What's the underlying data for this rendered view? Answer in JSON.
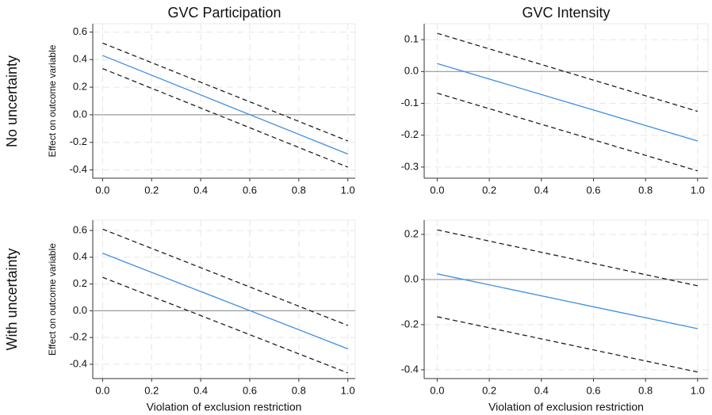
{
  "column_titles": [
    "GVC Participation",
    "GVC Intensity"
  ],
  "row_labels": [
    "No uncertainty",
    "With uncertainty"
  ],
  "chart_data": [
    {
      "type": "line",
      "x": [
        0,
        1
      ],
      "xlim": [
        -0.04,
        1.03
      ],
      "ylim": [
        -0.46,
        0.66
      ],
      "xticks": [
        {
          "value": 0,
          "label": "0.0"
        },
        0.2,
        0.4,
        0.6,
        0.8,
        {
          "value": 1,
          "label": "1.0"
        }
      ],
      "yticks": [
        -0.4,
        -0.2,
        {
          "value": 0,
          "label": "0.0"
        },
        0.2,
        0.4,
        0.6
      ],
      "y_label": "Effect on outcome variable",
      "grid": true,
      "reference_line": 0,
      "series": [
        {
          "color": "#1f1f1f",
          "dashed": true,
          "values": [
            0.52,
            -0.19
          ]
        },
        {
          "color": "#3d8fe0",
          "dashed": false,
          "values": [
            0.43,
            -0.285
          ]
        },
        {
          "color": "#1f1f1f",
          "dashed": true,
          "values": [
            0.335,
            -0.38
          ]
        }
      ]
    },
    {
      "type": "line",
      "x": [
        0,
        1
      ],
      "xlim": [
        -0.05,
        1.04
      ],
      "ylim": [
        -0.335,
        0.15
      ],
      "xticks": [
        {
          "value": 0,
          "label": "0.0"
        },
        0.2,
        0.4,
        0.6,
        0.8,
        {
          "value": 1,
          "label": "1.0"
        }
      ],
      "yticks": [
        -0.3,
        -0.2,
        -0.1,
        {
          "value": 0,
          "label": "0.0"
        },
        0.1
      ],
      "grid": true,
      "reference_line": 0,
      "series": [
        {
          "color": "#1f1f1f",
          "dashed": true,
          "values": [
            0.12,
            -0.125
          ]
        },
        {
          "color": "#3d8fe0",
          "dashed": false,
          "values": [
            0.025,
            -0.218
          ]
        },
        {
          "color": "#1f1f1f",
          "dashed": true,
          "values": [
            -0.068,
            -0.312
          ]
        }
      ]
    },
    {
      "type": "line",
      "x": [
        0,
        1
      ],
      "xlim": [
        -0.04,
        1.03
      ],
      "ylim": [
        -0.507,
        0.677
      ],
      "xticks": [
        {
          "value": 0,
          "label": "0.0"
        },
        0.2,
        0.4,
        0.6,
        0.8,
        {
          "value": 1,
          "label": "1.0"
        }
      ],
      "yticks": [
        -0.4,
        -0.2,
        {
          "value": 0,
          "label": "0.0"
        },
        0.2,
        0.4,
        0.6
      ],
      "y_label": "Effect on outcome variable",
      "x_label": "Violation of exclusion restriction",
      "grid": true,
      "reference_line": 0,
      "series": [
        {
          "color": "#1f1f1f",
          "dashed": true,
          "values": [
            0.61,
            -0.11
          ]
        },
        {
          "color": "#3d8fe0",
          "dashed": false,
          "values": [
            0.43,
            -0.285
          ]
        },
        {
          "color": "#1f1f1f",
          "dashed": true,
          "values": [
            0.25,
            -0.465
          ]
        }
      ]
    },
    {
      "type": "line",
      "x": [
        0,
        1
      ],
      "xlim": [
        -0.05,
        1.04
      ],
      "ylim": [
        -0.439,
        0.263
      ],
      "xticks": [
        {
          "value": 0,
          "label": "0.0"
        },
        0.2,
        0.4,
        0.6,
        0.8,
        {
          "value": 1,
          "label": "1.0"
        }
      ],
      "yticks": [
        -0.4,
        -0.2,
        {
          "value": 0,
          "label": "0.0"
        },
        0.2
      ],
      "x_label": "Violation of exclusion restriction",
      "grid": true,
      "reference_line": 0,
      "series": [
        {
          "color": "#1f1f1f",
          "dashed": true,
          "values": [
            0.22,
            -0.028
          ]
        },
        {
          "color": "#3d8fe0",
          "dashed": false,
          "values": [
            0.025,
            -0.218
          ]
        },
        {
          "color": "#1f1f1f",
          "dashed": true,
          "values": [
            -0.165,
            -0.41
          ]
        }
      ]
    }
  ]
}
